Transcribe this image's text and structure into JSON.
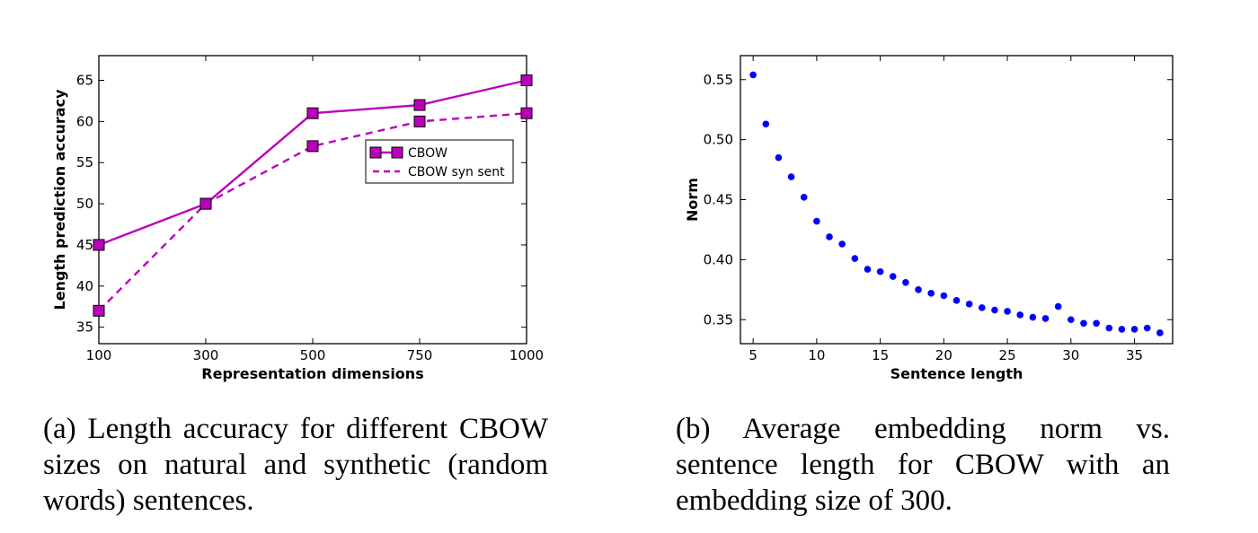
{
  "chart_data": [
    {
      "type": "line",
      "xlabel": "Representation dimensions",
      "ylabel": "Length prediction accuracy",
      "categories": [
        "100",
        "300",
        "500",
        "750",
        "1000"
      ],
      "ylim": [
        33,
        68
      ],
      "yticks": [
        35,
        40,
        45,
        50,
        55,
        60,
        65
      ],
      "legend_position": "upper-right (inset)",
      "series": [
        {
          "name": "CBOW",
          "values": [
            45,
            50,
            61,
            62,
            65
          ],
          "style": "solid",
          "marker": "square",
          "color": "#bb00bb"
        },
        {
          "name": "CBOW syn sent",
          "values": [
            37,
            50,
            57,
            60,
            61
          ],
          "style": "dashed",
          "marker": "square",
          "color": "#bb00bb"
        }
      ]
    },
    {
      "type": "scatter",
      "xlabel": "Sentence length",
      "ylabel": "Norm",
      "xlim": [
        4,
        38
      ],
      "ylim": [
        0.33,
        0.57
      ],
      "xticks": [
        5,
        10,
        15,
        20,
        25,
        30,
        35
      ],
      "yticks": [
        0.35,
        0.4,
        0.45,
        0.5,
        0.55
      ],
      "color": "#0000ff",
      "points": [
        [
          5,
          0.554
        ],
        [
          6,
          0.513
        ],
        [
          7,
          0.485
        ],
        [
          8,
          0.469
        ],
        [
          9,
          0.452
        ],
        [
          10,
          0.432
        ],
        [
          11,
          0.419
        ],
        [
          12,
          0.413
        ],
        [
          13,
          0.401
        ],
        [
          14,
          0.392
        ],
        [
          15,
          0.39
        ],
        [
          16,
          0.386
        ],
        [
          17,
          0.381
        ],
        [
          18,
          0.375
        ],
        [
          19,
          0.372
        ],
        [
          20,
          0.37
        ],
        [
          21,
          0.366
        ],
        [
          22,
          0.363
        ],
        [
          23,
          0.36
        ],
        [
          24,
          0.358
        ],
        [
          25,
          0.357
        ],
        [
          26,
          0.354
        ],
        [
          27,
          0.352
        ],
        [
          28,
          0.351
        ],
        [
          29,
          0.361
        ],
        [
          30,
          0.35
        ],
        [
          31,
          0.347
        ],
        [
          32,
          0.347
        ],
        [
          33,
          0.343
        ],
        [
          34,
          0.342
        ],
        [
          35,
          0.342
        ],
        [
          36,
          0.343
        ],
        [
          37,
          0.339
        ]
      ]
    }
  ],
  "captions": {
    "a": "(a) Length accuracy for different CBOW sizes on natural and synthetic (random words) sentences.",
    "b": "(b) Average embedding norm vs. sentence length for CBOW with an embedding size of 300."
  }
}
